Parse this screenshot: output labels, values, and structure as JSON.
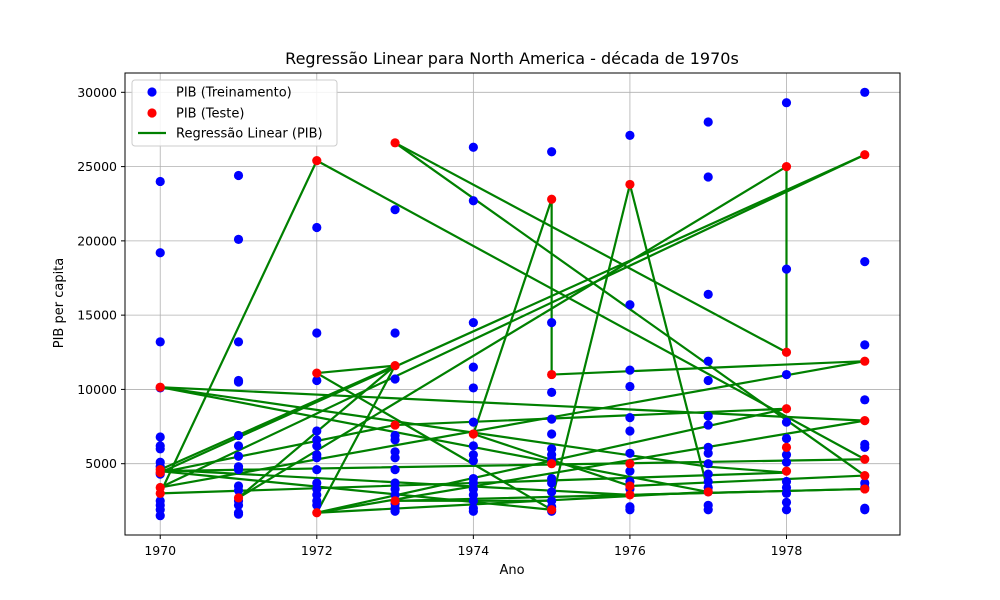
{
  "chart_data": {
    "type": "scatter",
    "title": "Regressão Linear para North America - década de 1970s",
    "xlabel": "Ano",
    "ylabel": "PIB per capita",
    "xlim": [
      1969.55,
      1979.45
    ],
    "ylim": [
      200,
      31300
    ],
    "xticks": [
      1970,
      1972,
      1974,
      1976,
      1978
    ],
    "yticks": [
      5000,
      10000,
      15000,
      20000,
      25000,
      30000
    ],
    "grid": true,
    "legend_position": "top-left",
    "colors": {
      "train": "#0000ff",
      "test": "#ff0000",
      "regression": "#008000"
    },
    "series": [
      {
        "name": "PIB (Treinamento)",
        "kind": "scatter",
        "points": [
          [
            1970,
            24000
          ],
          [
            1970,
            19200
          ],
          [
            1970,
            13200
          ],
          [
            1970,
            10100
          ],
          [
            1970,
            6800
          ],
          [
            1970,
            6200
          ],
          [
            1970,
            6000
          ],
          [
            1970,
            5100
          ],
          [
            1970,
            4800
          ],
          [
            1970,
            4300
          ],
          [
            1970,
            2500
          ],
          [
            1970,
            2200
          ],
          [
            1970,
            1900
          ],
          [
            1970,
            1500
          ],
          [
            1971,
            24400
          ],
          [
            1971,
            20100
          ],
          [
            1971,
            13200
          ],
          [
            1971,
            10600
          ],
          [
            1971,
            10500
          ],
          [
            1971,
            6900
          ],
          [
            1971,
            6200
          ],
          [
            1971,
            5500
          ],
          [
            1971,
            4800
          ],
          [
            1971,
            4600
          ],
          [
            1971,
            3500
          ],
          [
            1971,
            3200
          ],
          [
            1971,
            2500
          ],
          [
            1971,
            2200
          ],
          [
            1971,
            1700
          ],
          [
            1971,
            1600
          ],
          [
            1972,
            20900
          ],
          [
            1972,
            13800
          ],
          [
            1972,
            10600
          ],
          [
            1972,
            7200
          ],
          [
            1972,
            6600
          ],
          [
            1972,
            6200
          ],
          [
            1972,
            5600
          ],
          [
            1972,
            5400
          ],
          [
            1972,
            4600
          ],
          [
            1972,
            3700
          ],
          [
            1972,
            3300
          ],
          [
            1972,
            2900
          ],
          [
            1972,
            2500
          ],
          [
            1972,
            2200
          ],
          [
            1973,
            22100
          ],
          [
            1973,
            13800
          ],
          [
            1973,
            10700
          ],
          [
            1973,
            6900
          ],
          [
            1973,
            6600
          ],
          [
            1973,
            5800
          ],
          [
            1973,
            5400
          ],
          [
            1973,
            4600
          ],
          [
            1973,
            3700
          ],
          [
            1973,
            3300
          ],
          [
            1973,
            2900
          ],
          [
            1973,
            2300
          ],
          [
            1973,
            2000
          ],
          [
            1973,
            1800
          ],
          [
            1974,
            26300
          ],
          [
            1974,
            22700
          ],
          [
            1974,
            14500
          ],
          [
            1974,
            11500
          ],
          [
            1974,
            10100
          ],
          [
            1974,
            7800
          ],
          [
            1974,
            6200
          ],
          [
            1974,
            5600
          ],
          [
            1974,
            5200
          ],
          [
            1974,
            4000
          ],
          [
            1974,
            3700
          ],
          [
            1974,
            3300
          ],
          [
            1974,
            2900
          ],
          [
            1974,
            2500
          ],
          [
            1974,
            2000
          ],
          [
            1974,
            1800
          ],
          [
            1975,
            26000
          ],
          [
            1975,
            14500
          ],
          [
            1975,
            9800
          ],
          [
            1975,
            8000
          ],
          [
            1975,
            7000
          ],
          [
            1975,
            6000
          ],
          [
            1975,
            5600
          ],
          [
            1975,
            5300
          ],
          [
            1975,
            4000
          ],
          [
            1975,
            3700
          ],
          [
            1975,
            3100
          ],
          [
            1975,
            2500
          ],
          [
            1975,
            2100
          ],
          [
            1975,
            1800
          ],
          [
            1976,
            27100
          ],
          [
            1976,
            15700
          ],
          [
            1976,
            11300
          ],
          [
            1976,
            10200
          ],
          [
            1976,
            8100
          ],
          [
            1976,
            7200
          ],
          [
            1976,
            5700
          ],
          [
            1976,
            4500
          ],
          [
            1976,
            3800
          ],
          [
            1976,
            3300
          ],
          [
            1976,
            2100
          ],
          [
            1976,
            1900
          ],
          [
            1977,
            28000
          ],
          [
            1977,
            24300
          ],
          [
            1977,
            16400
          ],
          [
            1977,
            11900
          ],
          [
            1977,
            10600
          ],
          [
            1977,
            8200
          ],
          [
            1977,
            7600
          ],
          [
            1977,
            6100
          ],
          [
            1977,
            5700
          ],
          [
            1977,
            5000
          ],
          [
            1977,
            4300
          ],
          [
            1977,
            3800
          ],
          [
            1977,
            3400
          ],
          [
            1977,
            3100
          ],
          [
            1977,
            2200
          ],
          [
            1977,
            1900
          ],
          [
            1978,
            29300
          ],
          [
            1978,
            18100
          ],
          [
            1978,
            11000
          ],
          [
            1978,
            7800
          ],
          [
            1978,
            6700
          ],
          [
            1978,
            5600
          ],
          [
            1978,
            5100
          ],
          [
            1978,
            3800
          ],
          [
            1978,
            3400
          ],
          [
            1978,
            3000
          ],
          [
            1978,
            2400
          ],
          [
            1978,
            1900
          ],
          [
            1979,
            30000
          ],
          [
            1979,
            18600
          ],
          [
            1979,
            13000
          ],
          [
            1979,
            9300
          ],
          [
            1979,
            6300
          ],
          [
            1979,
            6100
          ],
          [
            1979,
            3700
          ],
          [
            1979,
            3400
          ],
          [
            1979,
            2000
          ],
          [
            1979,
            1900
          ]
        ]
      },
      {
        "name": "PIB (Teste)",
        "kind": "scatter",
        "points": [
          [
            1970,
            10150
          ],
          [
            1970,
            4600
          ],
          [
            1970,
            4400
          ],
          [
            1970,
            3400
          ],
          [
            1970,
            3000
          ],
          [
            1971,
            2700
          ],
          [
            1972,
            25400
          ],
          [
            1972,
            11100
          ],
          [
            1972,
            1700
          ],
          [
            1973,
            26600
          ],
          [
            1973,
            11600
          ],
          [
            1973,
            7600
          ],
          [
            1973,
            2500
          ],
          [
            1974,
            7000
          ],
          [
            1975,
            22800
          ],
          [
            1975,
            11000
          ],
          [
            1975,
            5000
          ],
          [
            1975,
            1900
          ],
          [
            1976,
            23800
          ],
          [
            1976,
            5000
          ],
          [
            1976,
            3500
          ],
          [
            1976,
            2900
          ],
          [
            1977,
            3100
          ],
          [
            1978,
            25000
          ],
          [
            1978,
            12500
          ],
          [
            1978,
            8700
          ],
          [
            1978,
            6100
          ],
          [
            1978,
            4500
          ],
          [
            1979,
            25800
          ],
          [
            1979,
            11900
          ],
          [
            1979,
            7900
          ],
          [
            1979,
            5300
          ],
          [
            1979,
            4200
          ],
          [
            1979,
            3300
          ]
        ]
      },
      {
        "name": "Regressão Linear (PIB)",
        "kind": "line",
        "points": [
          [
            1970,
            10150
          ],
          [
            1977,
            4800
          ],
          [
            1978,
            4400
          ],
          [
            1970,
            3000
          ],
          [
            1972,
            25400
          ],
          [
            1979,
            5300
          ],
          [
            1970,
            4500
          ],
          [
            1975,
            1900
          ],
          [
            1972,
            11100
          ],
          [
            1973,
            11600
          ],
          [
            1971,
            2700
          ],
          [
            1978,
            25000
          ],
          [
            1978,
            12500
          ],
          [
            1973,
            26600
          ],
          [
            1979,
            4200
          ],
          [
            1976,
            3500
          ],
          [
            1974,
            7000
          ],
          [
            1975,
            22800
          ],
          [
            1975,
            11000
          ],
          [
            1979,
            11900
          ],
          [
            1970,
            3400
          ],
          [
            1979,
            25800
          ],
          [
            1970,
            4400
          ],
          [
            1973,
            7600
          ],
          [
            1978,
            8700
          ],
          [
            1972,
            1700
          ],
          [
            1979,
            7900
          ],
          [
            1970,
            10150
          ],
          [
            1977,
            3100
          ],
          [
            1976,
            23800
          ],
          [
            1975,
            2500
          ],
          [
            1973,
            2500
          ],
          [
            1979,
            3300
          ],
          [
            1976,
            2900
          ],
          [
            1970,
            4600
          ],
          [
            1973,
            11600
          ],
          [
            1972,
            1700
          ],
          [
            1977,
            3100
          ]
        ]
      }
    ]
  }
}
